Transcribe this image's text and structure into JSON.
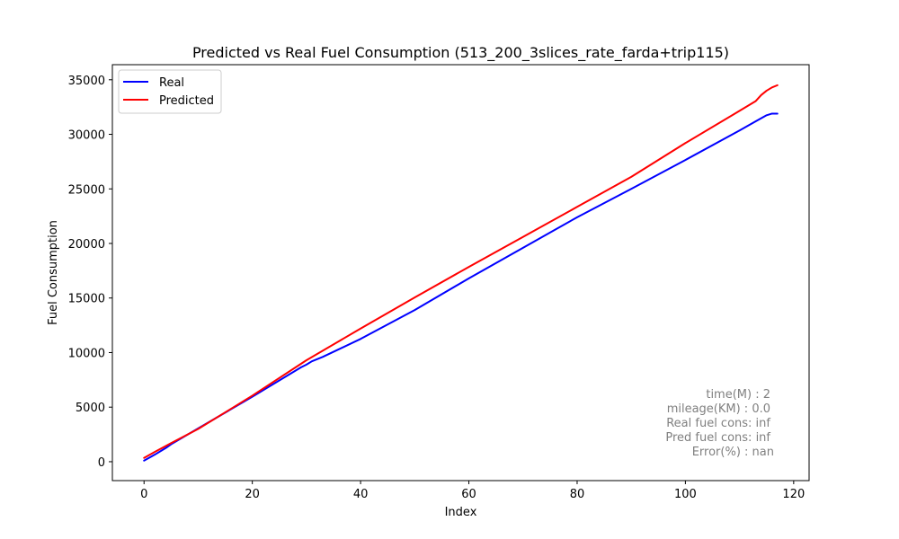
{
  "chart_data": {
    "type": "line",
    "title": "Predicted vs Real Fuel Consumption (513_200_3slices_rate_farda+trip115)",
    "xlabel": "Index",
    "ylabel": "Fuel Consumption",
    "xlim": [
      -5.85,
      122.85
    ],
    "ylim": [
      -1732.5,
      36382.5
    ],
    "x_ticks": [
      0,
      20,
      40,
      60,
      80,
      100,
      120
    ],
    "y_ticks": [
      0,
      5000,
      10000,
      15000,
      20000,
      25000,
      30000,
      35000
    ],
    "grid": false,
    "legend_position": "top-left",
    "series": [
      {
        "name": "Real",
        "color": "#0000ff",
        "points": [
          [
            0,
            100
          ],
          [
            2,
            650
          ],
          [
            4,
            1250
          ],
          [
            5,
            1600
          ],
          [
            10,
            3050
          ],
          [
            20,
            5950
          ],
          [
            29,
            8650
          ],
          [
            30,
            8900
          ],
          [
            31,
            9200
          ],
          [
            33,
            9600
          ],
          [
            40,
            11250
          ],
          [
            50,
            13900
          ],
          [
            60,
            16800
          ],
          [
            70,
            19600
          ],
          [
            80,
            22400
          ],
          [
            90,
            25000
          ],
          [
            100,
            27650
          ],
          [
            110,
            30350
          ],
          [
            113,
            31200
          ],
          [
            115,
            31750
          ],
          [
            116,
            31900
          ],
          [
            117,
            31900
          ]
        ]
      },
      {
        "name": "Predicted",
        "color": "#ff0000",
        "points": [
          [
            0,
            350
          ],
          [
            2,
            900
          ],
          [
            5,
            1700
          ],
          [
            10,
            3000
          ],
          [
            20,
            6050
          ],
          [
            30,
            9300
          ],
          [
            40,
            12200
          ],
          [
            50,
            15050
          ],
          [
            60,
            17850
          ],
          [
            70,
            20600
          ],
          [
            80,
            23350
          ],
          [
            90,
            26100
          ],
          [
            100,
            29200
          ],
          [
            110,
            32150
          ],
          [
            113,
            33050
          ],
          [
            114,
            33600
          ],
          [
            115,
            34000
          ],
          [
            116,
            34300
          ],
          [
            117,
            34500
          ]
        ]
      }
    ],
    "annotations": [
      "time(M) : 2",
      "mileage(KM) : 0.0",
      "Real fuel cons: inf",
      "Pred fuel cons: inf",
      "Error(%) : nan"
    ],
    "annotation_color": "#808080"
  }
}
